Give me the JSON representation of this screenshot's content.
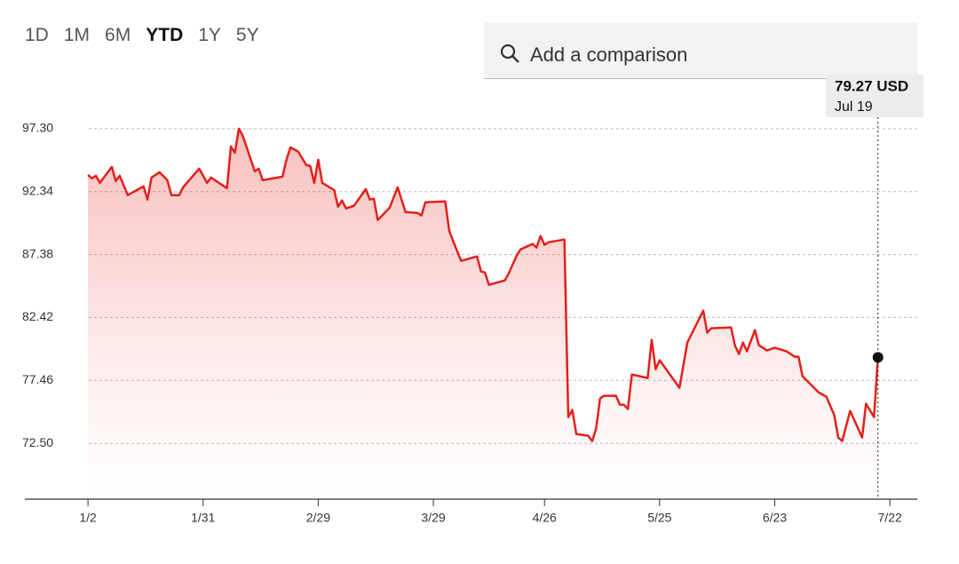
{
  "controls": {
    "ranges": [
      "1D",
      "1M",
      "6M",
      "YTD",
      "1Y",
      "5Y"
    ],
    "selected": 3,
    "search_placeholder": "Add a comparison"
  },
  "chart_data": {
    "type": "area-line",
    "color": "#e3201b",
    "x": [
      2,
      3,
      4,
      5,
      8,
      9,
      10,
      12,
      16,
      17,
      18,
      20,
      22,
      23,
      25,
      26,
      30,
      32,
      33,
      37,
      38,
      39,
      40,
      41,
      44,
      45,
      46,
      51,
      52,
      53,
      55,
      57,
      58,
      59,
      60,
      61,
      64,
      65,
      66,
      67,
      69,
      72,
      73,
      74,
      75,
      78,
      80,
      82,
      85,
      86,
      87,
      92,
      93,
      94,
      96,
      100,
      101,
      102,
      103,
      107,
      108,
      110,
      111,
      114,
      115,
      116,
      117,
      118,
      122,
      123,
      124,
      125,
      128,
      129,
      130,
      131,
      132,
      135,
      136,
      137,
      138,
      139,
      142,
      143,
      144,
      145,
      146,
      151,
      153,
      157,
      158,
      159,
      164,
      165,
      166,
      167,
      168,
      170,
      171,
      173,
      175,
      178,
      180,
      181,
      182,
      186,
      188,
      190,
      191,
      192,
      194,
      197,
      198,
      200,
      201
    ],
    "values": [
      93.66,
      93.38,
      93.59,
      93.03,
      94.29,
      93.17,
      93.59,
      92.06,
      92.75,
      91.71,
      93.45,
      93.87,
      93.24,
      92.06,
      92.06,
      92.69,
      94.15,
      93.03,
      93.45,
      92.61,
      95.9,
      95.41,
      97.3,
      96.74,
      93.94,
      94.15,
      93.24,
      93.52,
      94.85,
      95.83,
      95.48,
      94.43,
      94.36,
      93.03,
      94.85,
      93.03,
      92.47,
      91.15,
      91.64,
      91.01,
      91.22,
      92.54,
      91.71,
      91.78,
      90.1,
      91.08,
      92.68,
      90.73,
      90.66,
      90.45,
      91.5,
      91.57,
      89.26,
      88.42,
      86.88,
      87.23,
      86.04,
      85.97,
      84.99,
      85.34,
      85.9,
      87.3,
      87.79,
      88.21,
      87.93,
      88.84,
      88.14,
      88.35,
      88.56,
      74.57,
      75.13,
      73.24,
      73.1,
      72.68,
      73.66,
      76.04,
      76.25,
      76.25,
      75.55,
      75.55,
      75.2,
      77.93,
      77.72,
      77.65,
      80.66,
      78.35,
      79.05,
      76.88,
      80.45,
      82.96,
      81.22,
      81.57,
      81.64,
      80.17,
      79.54,
      80.45,
      79.75,
      81.43,
      80.24,
      79.82,
      80.03,
      79.75,
      79.33,
      79.33,
      77.79,
      76.53,
      76.18,
      74.71,
      72.96,
      72.68,
      75.06,
      72.96,
      75.62,
      74.57,
      79.27
    ],
    "xlim": [
      -13.9,
      210.9
    ],
    "xticks": [
      {
        "value": 2,
        "label": "1/2"
      },
      {
        "value": 31,
        "label": "1/31"
      },
      {
        "value": 60,
        "label": "2/29"
      },
      {
        "value": 89,
        "label": "3/29"
      },
      {
        "value": 117,
        "label": "4/26"
      },
      {
        "value": 146,
        "label": "5/25"
      },
      {
        "value": 175,
        "label": "6/23"
      },
      {
        "value": 204,
        "label": "7/22"
      }
    ],
    "ylim": [
      68.1,
      100.44
    ],
    "yticks": [
      {
        "value": 97.3,
        "label": "97.30"
      },
      92.34,
      87.38,
      82.42,
      77.46,
      {
        "value": 72.5,
        "label": "72.50"
      }
    ],
    "grid": true,
    "tooltip": {
      "value_label": "79.27 USD",
      "date": "Jul 19"
    }
  }
}
